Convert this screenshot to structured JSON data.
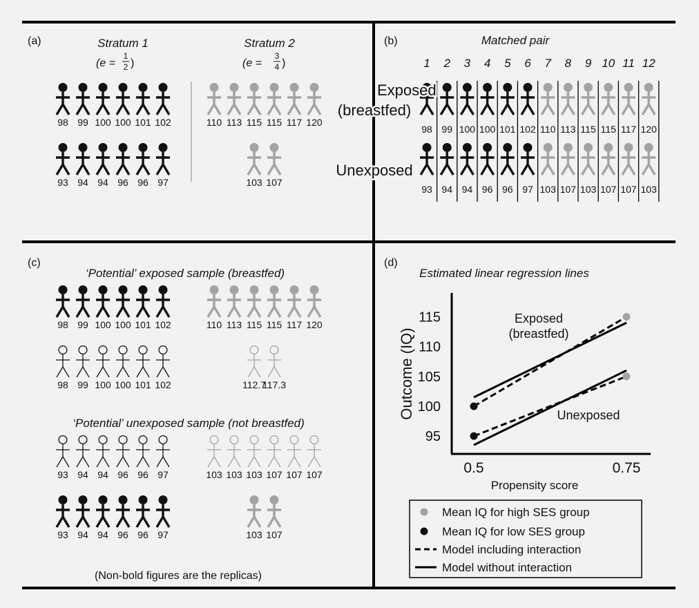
{
  "colors": {
    "background": "#f2f2f2",
    "black_figure": "#111111",
    "grey_figure": "#a3a3a3",
    "frame": "#000000"
  },
  "panel_a": {
    "label": "(a)",
    "stratum1": {
      "title": "Stratum 1",
      "e_prefix": "(e = ",
      "e_num": "1",
      "e_den": "2",
      "e_suffix": ")",
      "top": [
        "98",
        "99",
        "100",
        "100",
        "101",
        "102"
      ],
      "bottom": [
        "93",
        "94",
        "94",
        "96",
        "96",
        "97"
      ]
    },
    "stratum2": {
      "title": "Stratum 2",
      "e_prefix": "(e = ",
      "e_num": "3",
      "e_den": "4",
      "e_suffix": ")",
      "top": [
        "110",
        "113",
        "115",
        "115",
        "117",
        "120"
      ],
      "bottom": [
        "103",
        "107"
      ]
    }
  },
  "panel_b": {
    "label": "(b)",
    "title": "Matched pair",
    "pair_numbers": [
      "1",
      "2",
      "3",
      "4",
      "5",
      "6",
      "7",
      "8",
      "9",
      "10",
      "11",
      "12"
    ],
    "exposed_label_1": "Exposed",
    "exposed_label_2": "(breastfed)",
    "unexposed_label": "Unexposed",
    "exposed_values": [
      "98",
      "99",
      "100",
      "100",
      "101",
      "102",
      "110",
      "113",
      "115",
      "115",
      "117",
      "120"
    ],
    "unexposed_values": [
      "93",
      "94",
      "94",
      "96",
      "96",
      "97",
      "103",
      "107",
      "103",
      "107",
      "107",
      "103"
    ]
  },
  "panel_c": {
    "label": "(c)",
    "exposed_title": "‘Potential’ exposed sample (breastfed)",
    "unexposed_title": "‘Potential’ unexposed sample (not breastfed)",
    "exp_black": [
      "98",
      "99",
      "100",
      "100",
      "101",
      "102"
    ],
    "exp_grey": [
      "110",
      "113",
      "115",
      "115",
      "117",
      "120"
    ],
    "exp_replica_black": [
      "98",
      "99",
      "100",
      "100",
      "101",
      "102"
    ],
    "exp_replica_grey": [
      "112.7",
      "117.3"
    ],
    "unexp_replica_black": [
      "93",
      "94",
      "94",
      "96",
      "96",
      "97"
    ],
    "unexp_replica_grey": [
      "103",
      "103",
      "103",
      "107",
      "107",
      "107"
    ],
    "unexp_black": [
      "93",
      "94",
      "94",
      "96",
      "96",
      "97"
    ],
    "unexp_grey": [
      "103",
      "107"
    ],
    "footnote": "(Non-bold figures are the replicas)"
  },
  "panel_d": {
    "label": "(d)",
    "title": "Estimated linear regression lines",
    "exposed_line_label_1": "Exposed",
    "exposed_line_label_2": "(breastfed)",
    "unexposed_line_label": "Unexposed",
    "legend": {
      "high_ses": "Mean IQ for high SES group",
      "low_ses": "Mean IQ for low SES group",
      "interaction": "Model including interaction",
      "no_interaction": "Model without interaction"
    }
  },
  "chart_data": {
    "type": "scatter",
    "title": "Estimated linear regression lines",
    "xlabel": "Propensity score",
    "ylabel": "Outcome (IQ)",
    "xlim": [
      0.5,
      0.75
    ],
    "ylim": [
      92,
      119
    ],
    "xticks": [
      "0.5",
      "0.75"
    ],
    "yticks": [
      "95",
      "100",
      "105",
      "110",
      "115"
    ],
    "grid": false,
    "legend_position": "bottom",
    "points": [
      {
        "group": "low SES",
        "exposure": "exposed",
        "x": 0.5,
        "y": 100
      },
      {
        "group": "high SES",
        "exposure": "exposed",
        "x": 0.75,
        "y": 115
      },
      {
        "group": "low SES",
        "exposure": "unexposed",
        "x": 0.5,
        "y": 95
      },
      {
        "group": "high SES",
        "exposure": "unexposed",
        "x": 0.75,
        "y": 105
      }
    ],
    "lines": [
      {
        "model": "interaction",
        "exposure": "exposed",
        "x": [
          0.5,
          0.75
        ],
        "y": [
          100,
          115
        ]
      },
      {
        "model": "interaction",
        "exposure": "unexposed",
        "x": [
          0.5,
          0.75
        ],
        "y": [
          95,
          105
        ]
      },
      {
        "model": "no interaction",
        "exposure": "exposed",
        "x": [
          0.5,
          0.75
        ],
        "y": [
          101.5,
          114
        ]
      },
      {
        "model": "no interaction",
        "exposure": "unexposed",
        "x": [
          0.5,
          0.75
        ],
        "y": [
          93.5,
          106
        ]
      }
    ]
  }
}
